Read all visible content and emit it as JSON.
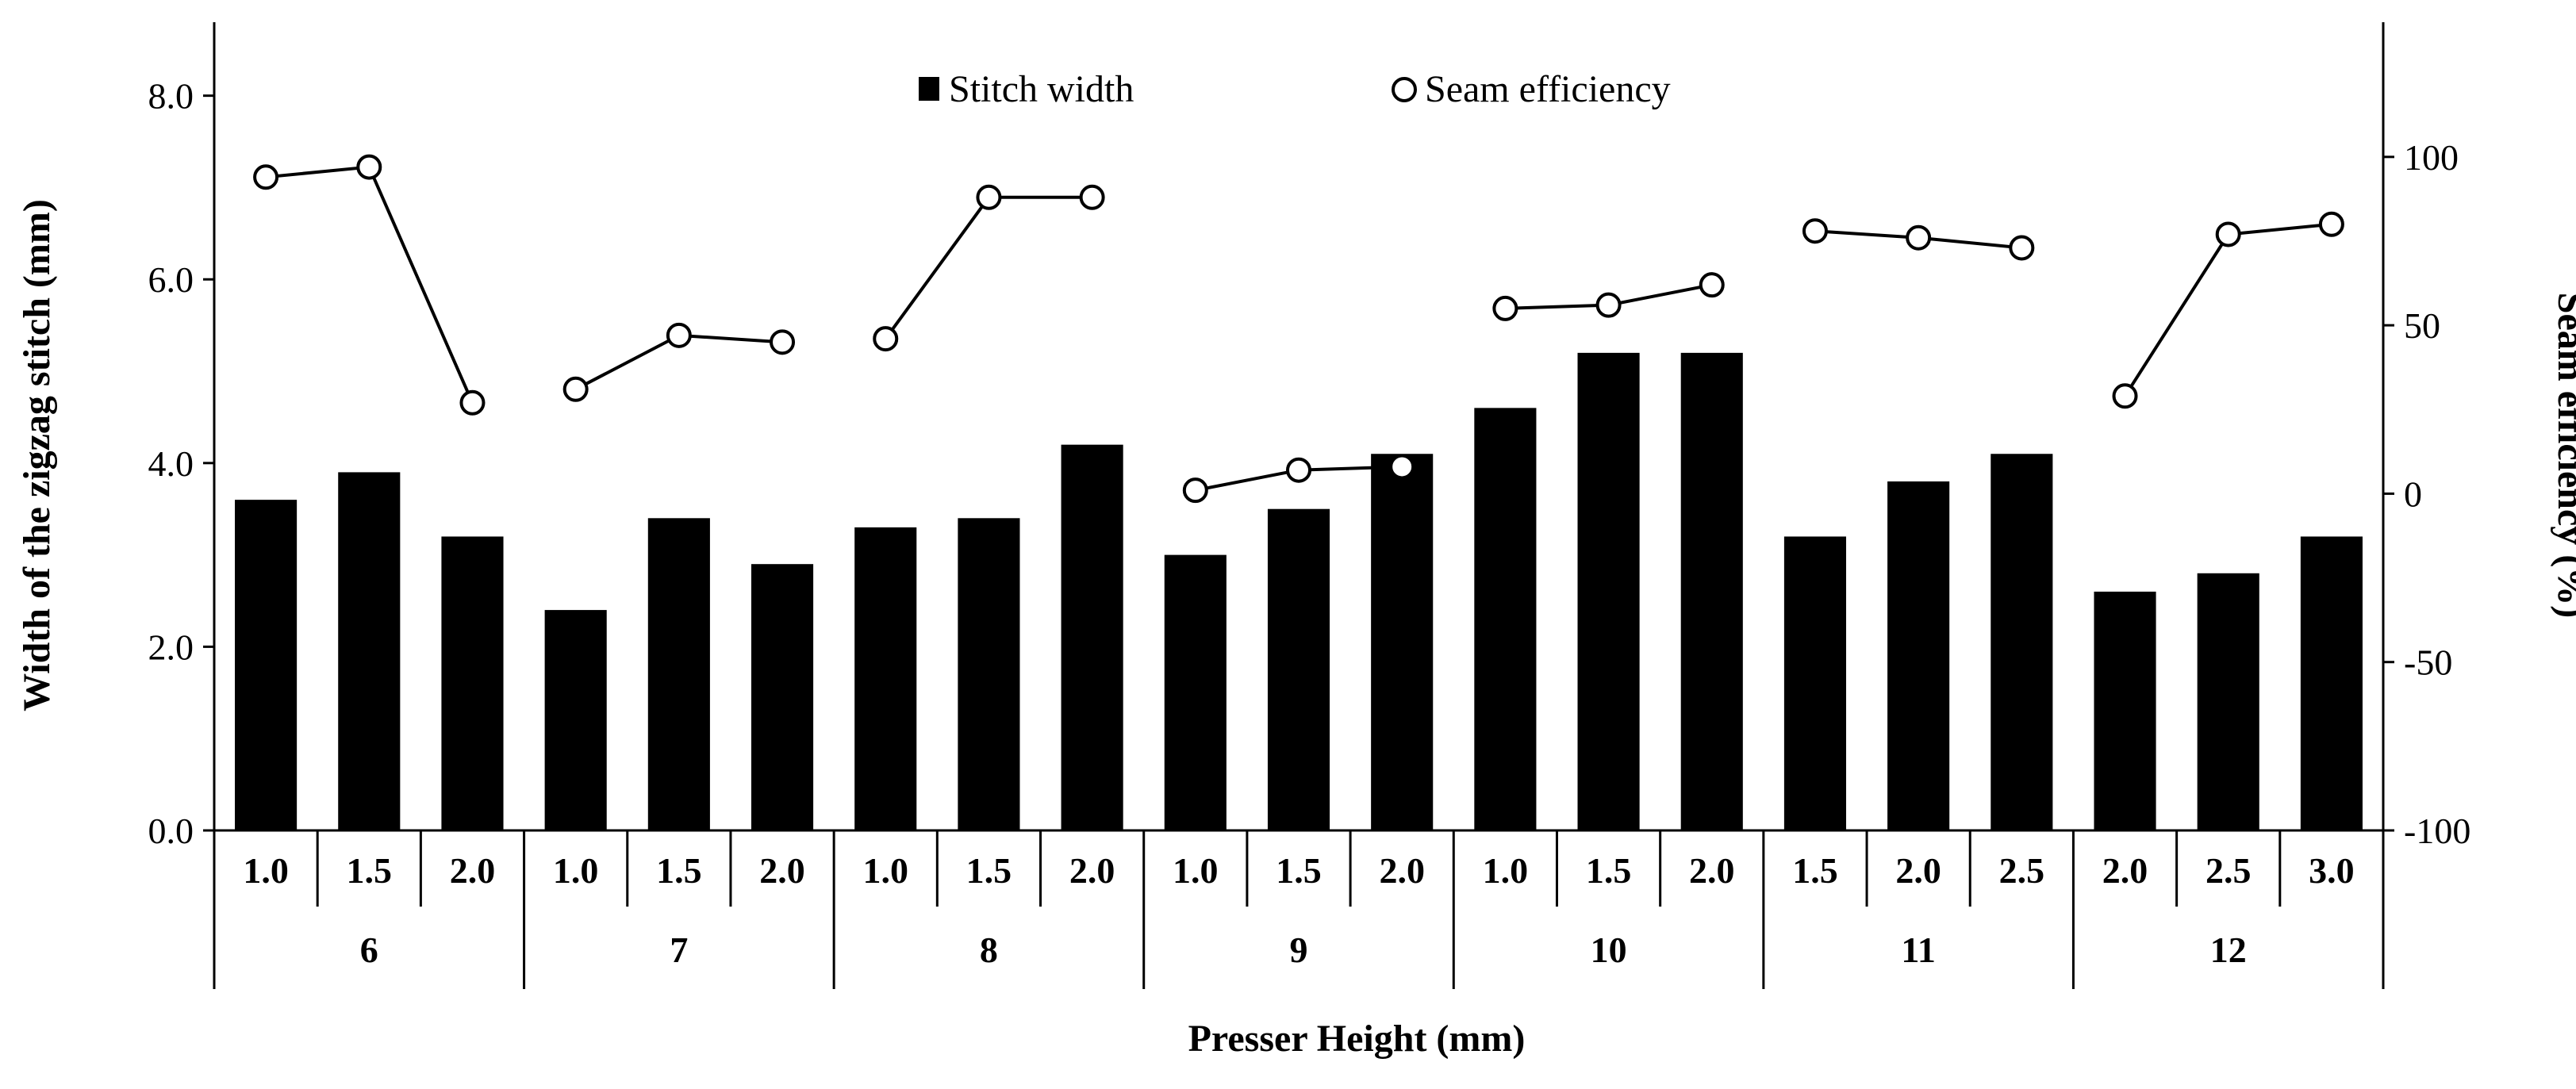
{
  "chart_data": {
    "type": "bar+line",
    "title": "",
    "xlabel": "Presser Height (mm)",
    "ylabel": "Width of the zigzag stitch (mm)",
    "y2label": "Seam efficiency (%)",
    "ylim": [
      0,
      8.8
    ],
    "y2lim": [
      -100,
      140
    ],
    "yticks": [
      "0.0",
      "2.0",
      "4.0",
      "6.0",
      "8.0"
    ],
    "y2ticks": [
      "-100",
      "-50",
      "0",
      "50",
      "100"
    ],
    "groups": [
      {
        "label": "6",
        "sub": [
          "1.0",
          "1.5",
          "2.0"
        ]
      },
      {
        "label": "7",
        "sub": [
          "1.0",
          "1.5",
          "2.0"
        ]
      },
      {
        "label": "8",
        "sub": [
          "1.0",
          "1.5",
          "2.0"
        ]
      },
      {
        "label": "9",
        "sub": [
          "1.0",
          "1.5",
          "2.0"
        ]
      },
      {
        "label": "10",
        "sub": [
          "1.0",
          "1.5",
          "2.0"
        ]
      },
      {
        "label": "11",
        "sub": [
          "1.5",
          "2.0",
          "2.5"
        ]
      },
      {
        "label": "12",
        "sub": [
          "2.0",
          "2.5",
          "3.0"
        ]
      }
    ],
    "series": [
      {
        "name": "Stitch width",
        "type": "bar",
        "axis": "left",
        "color": "#000000",
        "values": [
          3.6,
          3.9,
          3.2,
          2.4,
          3.4,
          2.9,
          3.3,
          3.4,
          4.2,
          3.0,
          3.5,
          4.1,
          4.6,
          5.2,
          5.2,
          3.2,
          3.8,
          4.1,
          2.6,
          2.8,
          3.2
        ]
      },
      {
        "name": "Seam efficiency",
        "type": "line",
        "axis": "right",
        "marker": "open-circle",
        "color": "#000000",
        "values": [
          94,
          97,
          27,
          31,
          47,
          45,
          46,
          88,
          88,
          1,
          7,
          8,
          55,
          56,
          62,
          78,
          76,
          73,
          29,
          77,
          80
        ]
      }
    ]
  }
}
